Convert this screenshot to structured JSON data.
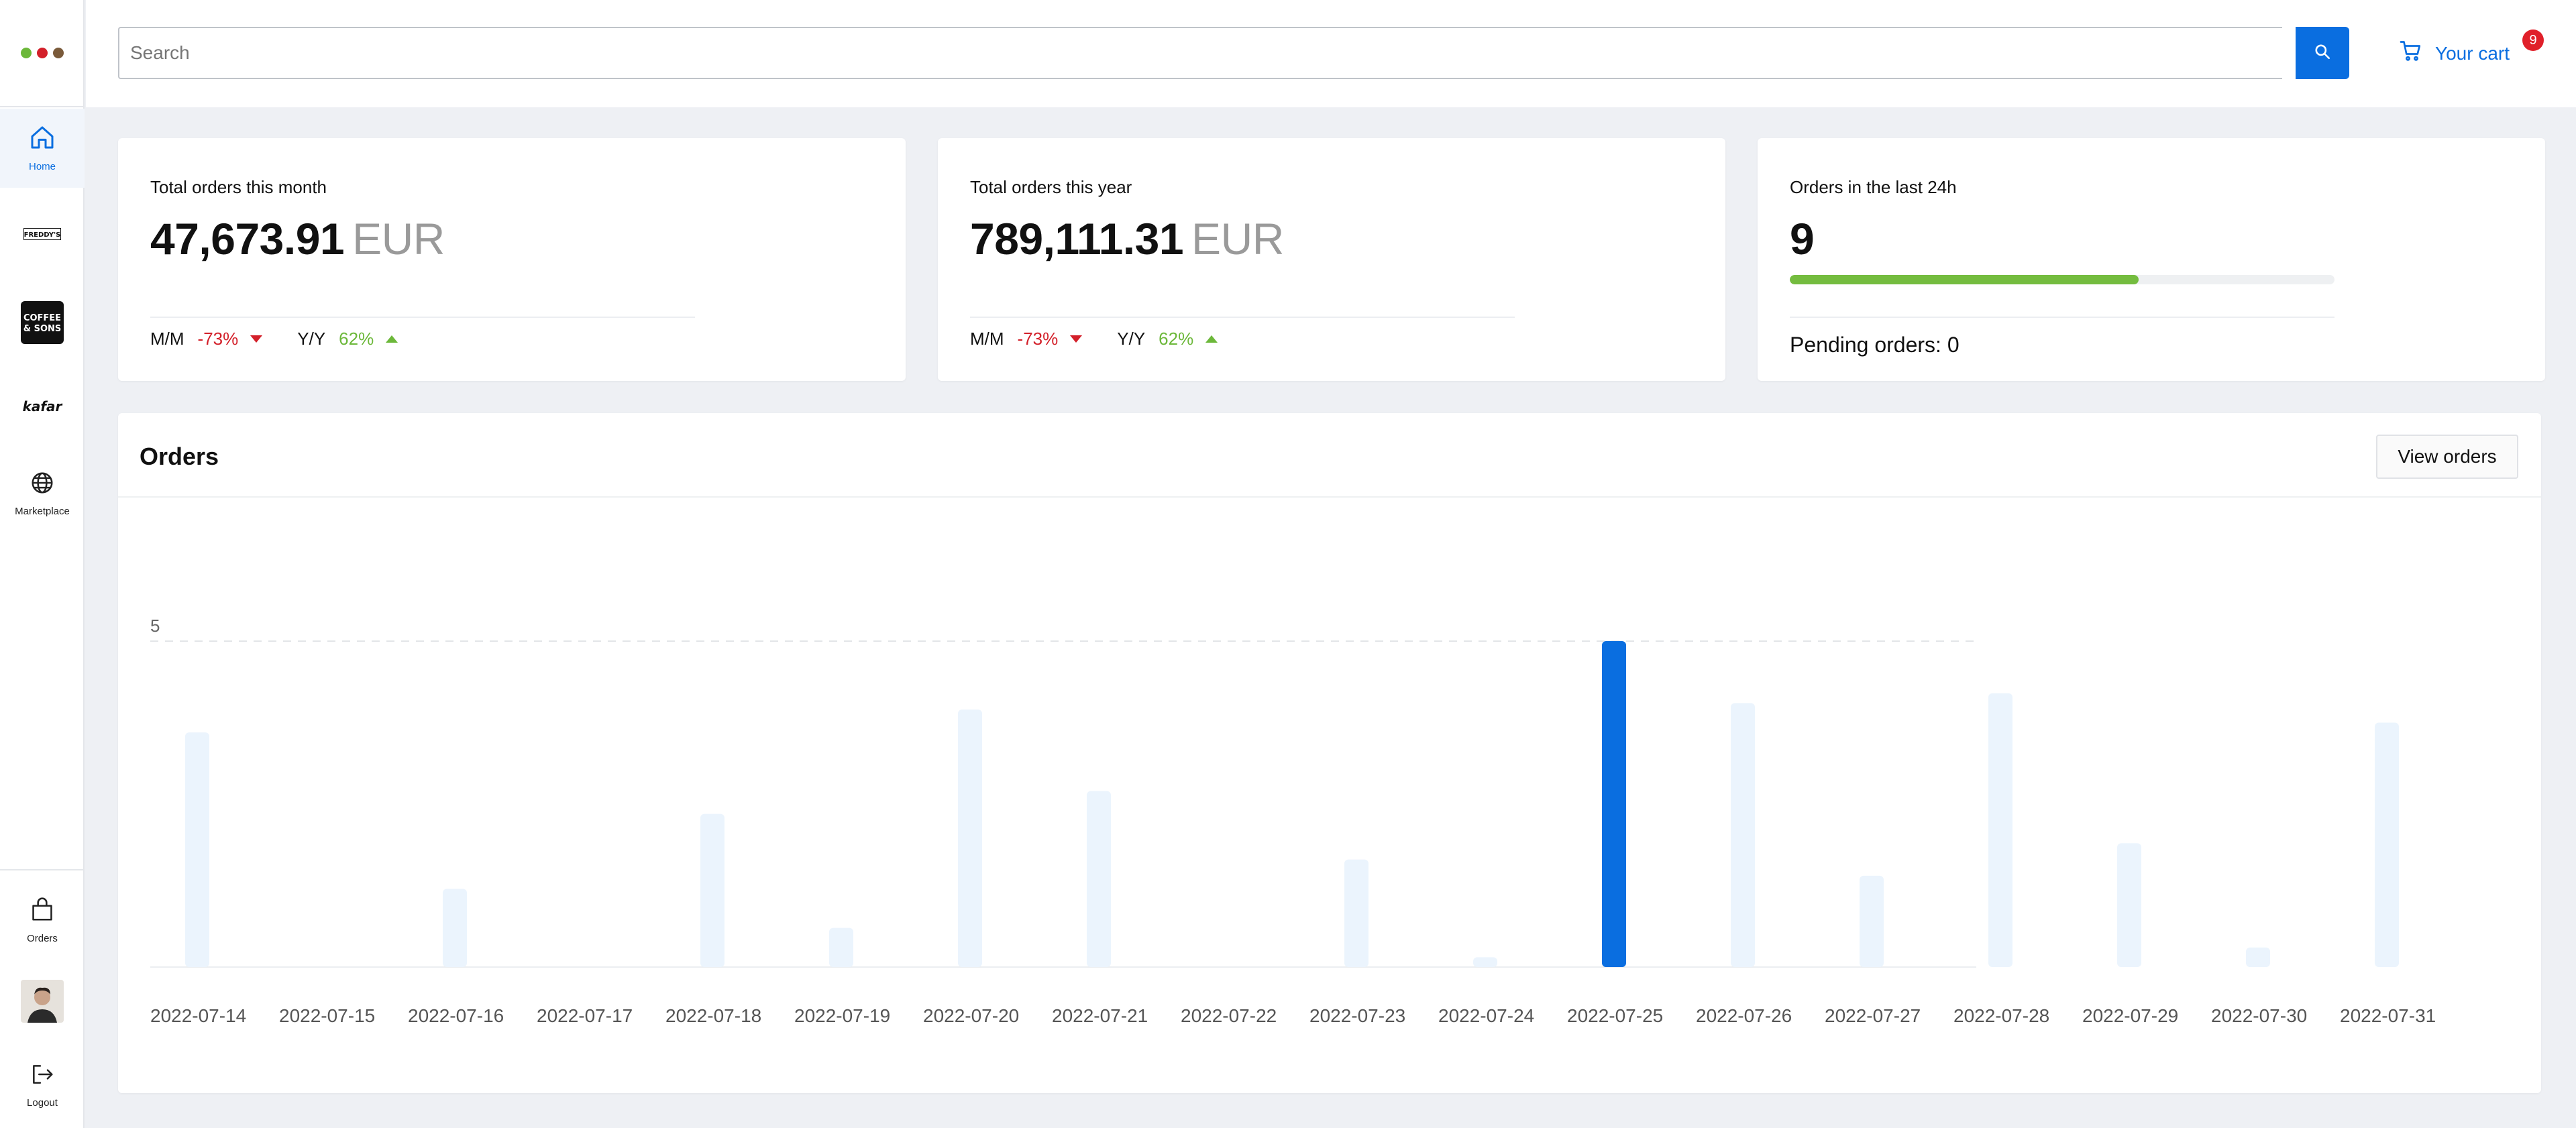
{
  "sidebar": {
    "logo_dots": [
      "#6cb83a",
      "#d3202a",
      "#7a5a3a"
    ],
    "nav": [
      {
        "label": "Home",
        "icon": "home-icon",
        "active": true
      },
      {
        "label": "",
        "brand": "FREDDY'S",
        "icon": "freddys-brand-logo"
      },
      {
        "label": "",
        "brand": "COFFEE & SONS",
        "icon": "coffee-sons-brand-logo"
      },
      {
        "label": "",
        "brand": "kafar",
        "icon": "kafar-brand-logo"
      },
      {
        "label": "Marketplace",
        "icon": "globe-icon"
      }
    ],
    "bottom": [
      {
        "label": "Orders",
        "icon": "shopping-bag-icon"
      },
      {
        "label": "",
        "icon": "avatar"
      },
      {
        "label": "Logout",
        "icon": "logout-icon"
      }
    ]
  },
  "header": {
    "search_placeholder": "Search",
    "cart_label": "Your cart",
    "cart_count": "9",
    "accent": "#0a6ee0"
  },
  "stats": {
    "month": {
      "title": "Total orders this month",
      "value": "47,673.91",
      "unit": "EUR",
      "mm_label": "M/M",
      "mm_value": "-73%",
      "yy_label": "Y/Y",
      "yy_value": "62%"
    },
    "year": {
      "title": "Total orders this year",
      "value": "789,111.31",
      "unit": "EUR",
      "mm_label": "M/M",
      "mm_value": "-73%",
      "yy_label": "Y/Y",
      "yy_value": "62%"
    },
    "last24": {
      "title": "Orders in the last 24h",
      "value": "9",
      "progress": 0.64,
      "pending_text": "Pending orders: 0"
    }
  },
  "orders": {
    "title": "Orders",
    "view_button": "View orders"
  },
  "chart_data": {
    "type": "bar",
    "categories": [
      "2022-07-14",
      "2022-07-15",
      "2022-07-16",
      "2022-07-17",
      "2022-07-18",
      "2022-07-19",
      "2022-07-20",
      "2022-07-21",
      "2022-07-22",
      "2022-07-23",
      "2022-07-24",
      "2022-07-25",
      "2022-07-26",
      "2022-07-27",
      "2022-07-28",
      "2022-07-29",
      "2022-07-30",
      "2022-07-31"
    ],
    "values": [
      3.6,
      0,
      1.2,
      0,
      2.35,
      0.6,
      3.95,
      2.7,
      0,
      1.65,
      0.15,
      5,
      4.05,
      1.4,
      4.2,
      1.9,
      0.3,
      3.75
    ],
    "highlight_index": 11,
    "y_ticks": [
      5
    ],
    "ylim": [
      0,
      5
    ],
    "xlabel": "",
    "ylabel": "",
    "bar_color": "#ebf4fd",
    "highlight_color": "#0a6ee0"
  }
}
